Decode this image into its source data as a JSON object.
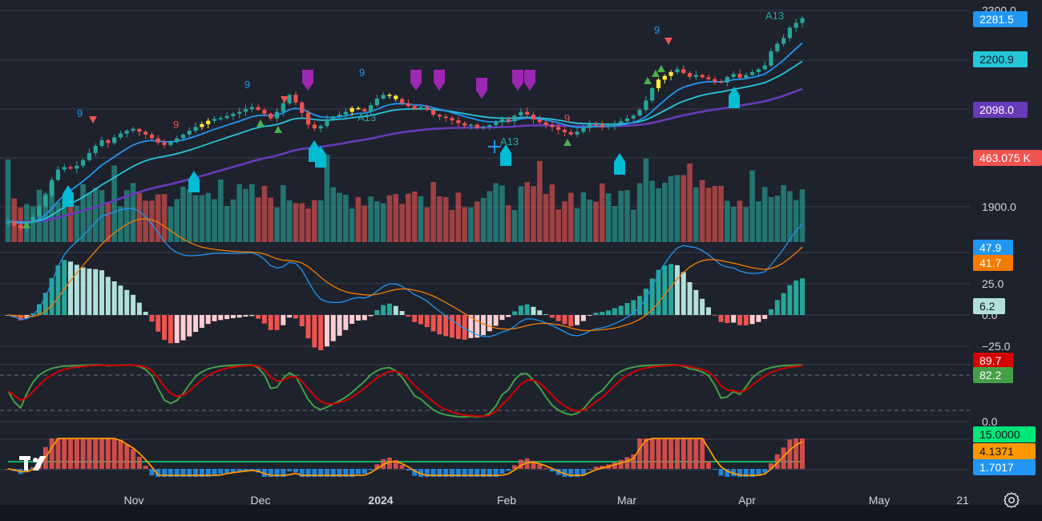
{
  "chart_data": [
    {
      "type": "candlestick",
      "panel": "price",
      "x_tick_labels": [
        "Nov",
        "Dec",
        "2024",
        "Feb",
        "Mar",
        "Apr",
        "May",
        "21"
      ],
      "y_tick_labels": [
        "2300.0",
        "1900.0"
      ],
      "badges": [
        {
          "value": "2281.5",
          "color": "#2196f3",
          "text_color": "#ffffff"
        },
        {
          "value": "2200.9",
          "color": "#26c6da",
          "text_color": "#131722"
        },
        {
          "value": "2098.0",
          "color": "#673ab7",
          "text_color": "#ffffff"
        },
        {
          "value": "463.075 K",
          "color": "#ef5350",
          "text_color": "#ffffff"
        }
      ],
      "annotations": [
        "9",
        "9",
        "9",
        "9",
        "9",
        "9",
        "A13",
        "A13",
        "A13"
      ],
      "close": [
        1880,
        1872,
        1866,
        1878,
        1890,
        1912,
        1935,
        1968,
        1990,
        1995,
        1992,
        1998,
        2010,
        2025,
        2040,
        2052,
        2046,
        2058,
        2066,
        2072,
        2076,
        2070,
        2064,
        2056,
        2047,
        2042,
        2048,
        2056,
        2064,
        2072,
        2080,
        2086,
        2093,
        2097,
        2099,
        2103,
        2108,
        2112,
        2118,
        2122,
        2116,
        2108,
        2098,
        2112,
        2130,
        2148,
        2132,
        2110,
        2085,
        2077,
        2082,
        2096,
        2102,
        2106,
        2112,
        2120,
        2118,
        2113,
        2126,
        2140,
        2148,
        2146,
        2139,
        2130,
        2124,
        2118,
        2122,
        2116,
        2106,
        2102,
        2099,
        2094,
        2088,
        2083,
        2085,
        2078,
        2080,
        2084,
        2090,
        2096,
        2092,
        2104,
        2112,
        2106,
        2096,
        2090,
        2084,
        2080,
        2074,
        2069,
        2064,
        2070,
        2078,
        2086,
        2084,
        2080,
        2083,
        2088,
        2092,
        2098,
        2104,
        2116,
        2136,
        2162,
        2180,
        2188,
        2196,
        2202,
        2194,
        2186,
        2190,
        2185,
        2181,
        2176,
        2174,
        2186,
        2192,
        2184,
        2190,
        2196,
        2202,
        2210,
        2240,
        2256,
        2268,
        2290,
        2300,
        2310
      ],
      "ylim": [
        1840,
        2340
      ],
      "series": [
        {
          "name": "",
          "color": "#2196f3"
        },
        {
          "name": "",
          "color": "#26c6da"
        },
        {
          "name": "",
          "color": "#673ab7"
        }
      ]
    },
    {
      "type": "bar",
      "panel": "volume",
      "colors": [
        "#26a69a",
        "#ef5350"
      ]
    },
    {
      "type": "macd",
      "panel": "macd",
      "y_tick_labels": [
        "25.0",
        "0.0",
        "−25.0"
      ],
      "ylim": [
        -30,
        50
      ],
      "badges": [
        {
          "value": "47.9",
          "color": "#2196f3",
          "text_color": "#ffffff"
        },
        {
          "value": "41.7",
          "color": "#f57c00",
          "text_color": "#ffffff"
        },
        {
          "value": "6.2",
          "color": "#b2dfdb",
          "text_color": "#131722"
        }
      ]
    },
    {
      "type": "line",
      "panel": "stochastic",
      "y_tick_labels": [
        "0.0"
      ],
      "badges": [
        {
          "value": "89.7",
          "color": "#d50000",
          "text_color": "#ffffff"
        },
        {
          "value": "82.2",
          "color": "#43a047",
          "text_color": "#ffffff"
        }
      ],
      "levels": [
        80,
        20
      ]
    },
    {
      "type": "bar",
      "panel": "oscillator",
      "badges": [
        {
          "value": "15.0000",
          "color": "#00e676",
          "text_color": "#131722"
        },
        {
          "value": "4.1371",
          "color": "#ff9800",
          "text_color": "#131722"
        },
        {
          "value": "1.7017",
          "color": "#2196f3",
          "text_color": "#ffffff"
        }
      ]
    }
  ],
  "icons": {
    "settings": "gear-icon",
    "logo": "tradingview-logo"
  }
}
